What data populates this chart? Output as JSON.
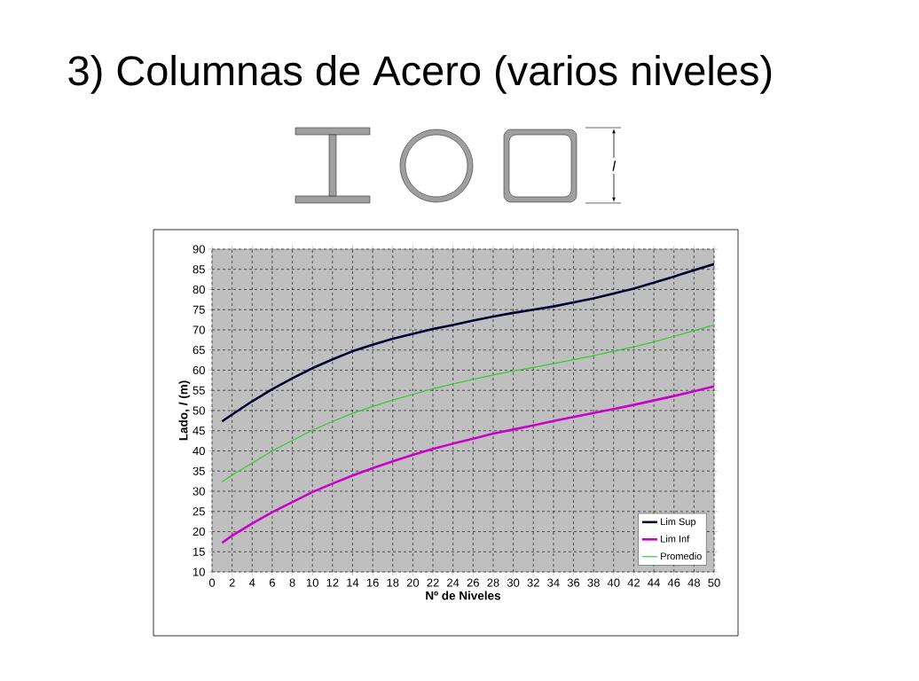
{
  "chart_data": {
    "type": "line",
    "title": "3) Columnas de Acero (varios niveles)",
    "xlabel": "Nº de Niveles",
    "ylabel": "Lado, *l* (m)",
    "annotations": [
      "l"
    ],
    "x": [
      1,
      2,
      4,
      6,
      8,
      10,
      12,
      14,
      16,
      18,
      20,
      22,
      24,
      26,
      28,
      30,
      32,
      34,
      36,
      38,
      40,
      42,
      44,
      46,
      48,
      50
    ],
    "series": [
      {
        "name": "Lim Sup",
        "color": "#000033",
        "values": [
          47.3,
          49,
          52.3,
          55.3,
          58,
          60.5,
          62.7,
          64.7,
          66.3,
          67.8,
          69,
          70.2,
          71.2,
          72.3,
          73.3,
          74.2,
          75,
          75.8,
          76.8,
          77.8,
          79,
          80.2,
          81.7,
          83.2,
          84.8,
          86.3
        ]
      },
      {
        "name": "Lim Inf",
        "color": "#cc00cc",
        "values": [
          17.2,
          19,
          22,
          24.8,
          27.3,
          29.8,
          31.9,
          33.9,
          35.7,
          37.4,
          39,
          40.5,
          41.8,
          43,
          44.3,
          45.3,
          46.3,
          47.4,
          48.4,
          49.4,
          50.4,
          51.4,
          52.5,
          53.6,
          54.8,
          56
        ]
      },
      {
        "name": "Promedio",
        "color": "#33cc33",
        "values": [
          32.3,
          34,
          37,
          40,
          42.6,
          45.1,
          47.3,
          49.3,
          51,
          52.6,
          54,
          55.4,
          56.6,
          57.7,
          58.8,
          59.8,
          60.7,
          61.6,
          62.6,
          63.6,
          64.7,
          65.8,
          67,
          68.4,
          69.8,
          71.2
        ]
      }
    ],
    "xlim": [
      0,
      50
    ],
    "xticks": [
      0,
      2,
      4,
      6,
      8,
      10,
      12,
      14,
      16,
      18,
      20,
      22,
      24,
      26,
      28,
      30,
      32,
      34,
      36,
      38,
      40,
      42,
      44,
      46,
      48,
      50
    ],
    "ylim": [
      10,
      90
    ],
    "yticks": [
      10,
      15,
      20,
      25,
      30,
      35,
      40,
      45,
      50,
      55,
      60,
      65,
      70,
      75,
      80,
      85,
      90
    ],
    "grid": true,
    "legend": "bottom right",
    "marker": "none",
    "line_style": "solid"
  }
}
